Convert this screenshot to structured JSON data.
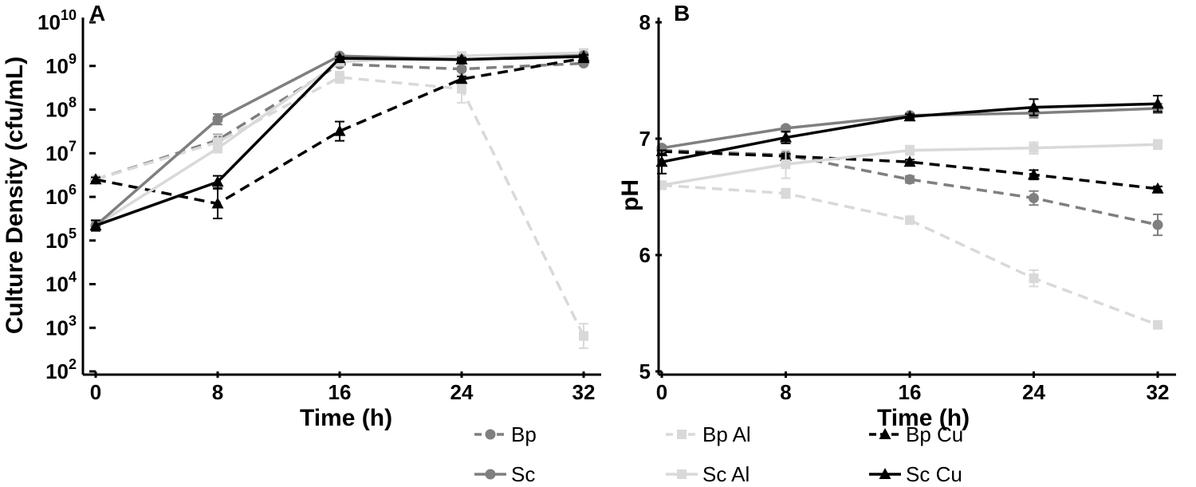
{
  "chart_data": [
    {
      "panel_label": "A",
      "type": "line",
      "xlabel": "Time (h)",
      "ylabel": "Culture  Density (cfu/mL)",
      "x": [
        0,
        8,
        16,
        24,
        32
      ],
      "x_ticks": [
        "0",
        "8",
        "16",
        "24",
        "32"
      ],
      "y_scale": "log",
      "ylim": [
        100,
        10000000000
      ],
      "y_tick_base": "10",
      "y_tick_exponents": [
        "2",
        "3",
        "4",
        "5",
        "6",
        "7",
        "8",
        "9",
        "10"
      ],
      "series": [
        {
          "name": "Bp",
          "values": [
            2500000,
            20000000,
            1100000000,
            850000000,
            1150000000
          ],
          "err": [
            0.05,
            0.13,
            0.04,
            0.05,
            0.04
          ]
        },
        {
          "name": "Bp Al",
          "values": [
            2500000,
            18000000,
            550000000,
            300000000,
            650
          ],
          "err": [
            0.05,
            0.16,
            0.13,
            0.32,
            0.28
          ]
        },
        {
          "name": "Bp Cu",
          "values": [
            2500000,
            700000,
            32000000,
            500000000,
            1500000000
          ],
          "err": [
            0.05,
            0.34,
            0.22,
            0.06,
            0.04
          ]
        },
        {
          "name": "Sc",
          "values": [
            220000,
            60000000,
            1700000000,
            1400000000,
            1750000000
          ],
          "err": [
            0.12,
            0.12,
            0.04,
            0.04,
            0.04
          ]
        },
        {
          "name": "Sc Al",
          "values": [
            220000,
            13000000,
            1250000000,
            1700000000,
            2000000000
          ],
          "err": [
            0.12,
            0.1,
            0.04,
            0.04,
            0.04
          ]
        },
        {
          "name": "Sc Cu",
          "values": [
            220000,
            2200000,
            1500000000,
            1400000000,
            1650000000
          ],
          "err": [
            0.12,
            0.14,
            0.04,
            0.04,
            0.04
          ]
        }
      ]
    },
    {
      "panel_label": "B",
      "type": "line",
      "xlabel": "Time (h)",
      "ylabel": "pH",
      "x": [
        0,
        8,
        16,
        24,
        32
      ],
      "x_ticks": [
        "0",
        "8",
        "16",
        "24",
        "32"
      ],
      "y_scale": "linear",
      "ylim": [
        5,
        8
      ],
      "y_ticks": [
        "5",
        "6",
        "7",
        "8"
      ],
      "series": [
        {
          "name": "Bp",
          "values": [
            6.9,
            6.86,
            6.65,
            6.49,
            6.26
          ],
          "err": [
            0.02,
            0.02,
            0.03,
            0.06,
            0.09
          ]
        },
        {
          "name": "Bp Al",
          "values": [
            6.6,
            6.53,
            6.3,
            5.8,
            5.4
          ],
          "err": [
            0.02,
            0.04,
            0.02,
            0.07,
            0.02
          ]
        },
        {
          "name": "Bp Cu",
          "values": [
            6.89,
            6.85,
            6.8,
            6.69,
            6.57
          ],
          "err": [
            0.02,
            0.02,
            0.02,
            0.04,
            0.02
          ]
        },
        {
          "name": "Sc",
          "values": [
            6.92,
            7.09,
            7.2,
            7.22,
            7.26
          ],
          "err": [
            0.02,
            0.02,
            0.02,
            0.04,
            0.04
          ]
        },
        {
          "name": "Sc Al",
          "values": [
            6.6,
            6.78,
            6.9,
            6.92,
            6.95
          ],
          "err": [
            0.02,
            0.12,
            0.04,
            0.05,
            0.04
          ]
        },
        {
          "name": "Sc Cu",
          "values": [
            6.8,
            7.01,
            7.19,
            7.27,
            7.3
          ],
          "err": [
            0.1,
            0.05,
            0.02,
            0.07,
            0.07
          ]
        }
      ]
    }
  ],
  "legend": {
    "placement": "bottom-center",
    "entries": [
      "Bp",
      "Bp Al",
      "Bp Cu",
      "Sc",
      "Sc Al",
      "Sc Cu"
    ]
  },
  "styles": {
    "Bp": {
      "color": "#7f7f7f",
      "dash": "dashed",
      "marker": "circle"
    },
    "Bp Al": {
      "color": "#d9d9d9",
      "dash": "dashed",
      "marker": "square"
    },
    "Bp Cu": {
      "color": "#000000",
      "dash": "dashed",
      "marker": "triangle"
    },
    "Sc": {
      "color": "#7f7f7f",
      "dash": "solid",
      "marker": "circle"
    },
    "Sc Al": {
      "color": "#d9d9d9",
      "dash": "solid",
      "marker": "square"
    },
    "Sc Cu": {
      "color": "#000000",
      "dash": "solid",
      "marker": "triangle"
    }
  }
}
